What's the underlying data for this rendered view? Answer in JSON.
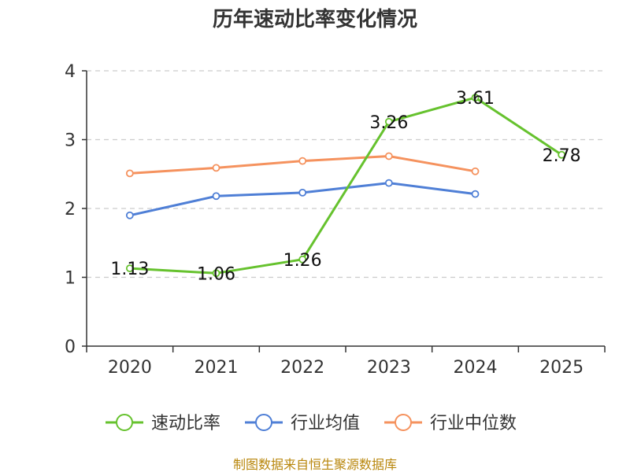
{
  "chart_data": {
    "type": "line",
    "title": "历年速动比率变化情况",
    "categories": [
      "2020",
      "2021",
      "2022",
      "2023",
      "2024",
      "2025"
    ],
    "ylim": [
      0,
      4
    ],
    "yticks": [
      "0",
      "1",
      "2",
      "3",
      "4"
    ],
    "grid": true,
    "legend_position": "bottom",
    "series": [
      {
        "name": "速动比率",
        "color": "#66c22e",
        "values": [
          1.13,
          1.06,
          1.26,
          3.26,
          3.61,
          2.78
        ],
        "labels": [
          "1.13",
          "1.06",
          "1.26",
          "3.26",
          "3.61",
          "2.78"
        ]
      },
      {
        "name": "行业均值",
        "color": "#4f7fd6",
        "values": [
          1.9,
          2.18,
          2.23,
          2.37,
          2.21,
          null
        ]
      },
      {
        "name": "行业中位数",
        "color": "#f5925e",
        "values": [
          2.51,
          2.59,
          2.69,
          2.76,
          2.54,
          null
        ]
      }
    ],
    "source": "制图数据来自恒生聚源数据库"
  }
}
